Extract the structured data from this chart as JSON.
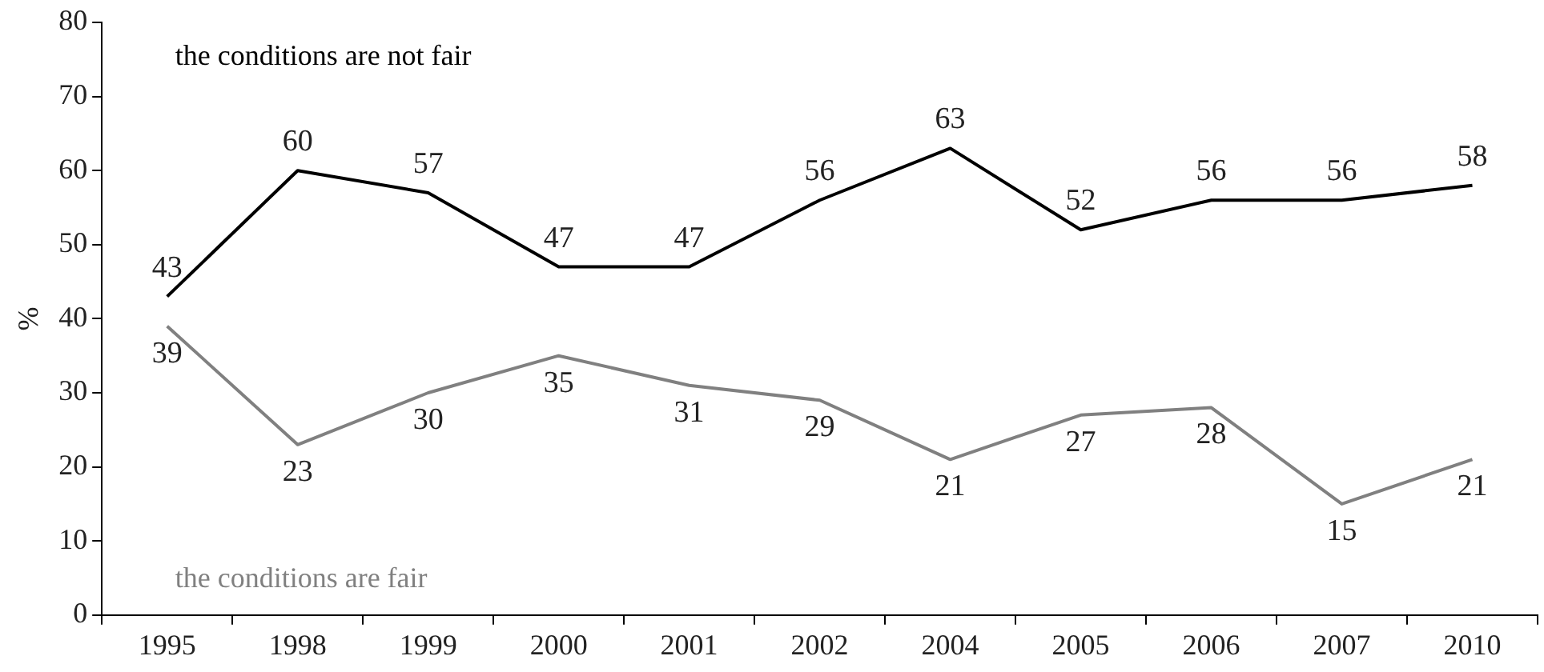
{
  "chart_data": {
    "type": "line",
    "ylabel": "%",
    "categories": [
      "1995",
      "1998",
      "1999",
      "2000",
      "2001",
      "2002",
      "2004",
      "2005",
      "2006",
      "2007",
      "2010"
    ],
    "series": [
      {
        "name": "the conditions are not fair",
        "color": "#000000",
        "values": [
          43,
          60,
          57,
          47,
          47,
          56,
          63,
          52,
          56,
          56,
          58
        ]
      },
      {
        "name": "the conditions are fair",
        "color": "#808080",
        "values": [
          39,
          23,
          30,
          35,
          31,
          29,
          21,
          27,
          28,
          15,
          21
        ]
      }
    ],
    "ylim": [
      0,
      80
    ],
    "yticks": [
      0,
      10,
      20,
      30,
      40,
      50,
      60,
      70,
      80
    ],
    "grid": false,
    "legend": false,
    "marker": "none",
    "line_style": "solid",
    "data_labels": true
  }
}
